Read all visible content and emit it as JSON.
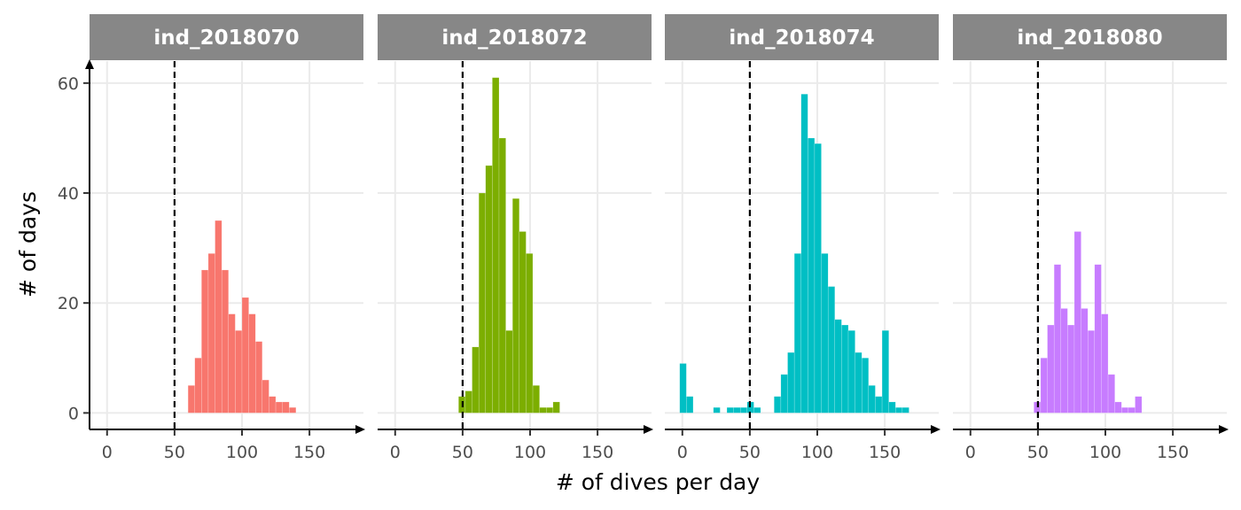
{
  "chart_data": {
    "type": "bar",
    "subtype": "faceted-histogram",
    "xlabel": "# of dives per day",
    "ylabel": "# of days",
    "xlim": [
      -13,
      190
    ],
    "ylim": [
      -3,
      64
    ],
    "x_ticks": [
      0,
      50,
      100,
      150
    ],
    "y_ticks": [
      0,
      20,
      40,
      60
    ],
    "bin_width": 5,
    "reference_line": {
      "x": 50,
      "style": "dashed",
      "color": "#000000"
    },
    "grid": true,
    "strip_color": "#878787",
    "facets": [
      {
        "name": "ind_2018070",
        "color": "#F8766D",
        "bins": [
          {
            "x": 60,
            "y": 5
          },
          {
            "x": 65,
            "y": 10
          },
          {
            "x": 70,
            "y": 26
          },
          {
            "x": 75,
            "y": 29
          },
          {
            "x": 80,
            "y": 35
          },
          {
            "x": 85,
            "y": 26
          },
          {
            "x": 90,
            "y": 18
          },
          {
            "x": 95,
            "y": 15
          },
          {
            "x": 100,
            "y": 21
          },
          {
            "x": 105,
            "y": 18
          },
          {
            "x": 110,
            "y": 13
          },
          {
            "x": 115,
            "y": 6
          },
          {
            "x": 120,
            "y": 3
          },
          {
            "x": 125,
            "y": 2
          },
          {
            "x": 130,
            "y": 2
          },
          {
            "x": 135,
            "y": 1
          }
        ]
      },
      {
        "name": "ind_2018072",
        "color": "#7CAE00",
        "bins": [
          {
            "x": 47,
            "y": 3
          },
          {
            "x": 52,
            "y": 4
          },
          {
            "x": 57,
            "y": 12
          },
          {
            "x": 62,
            "y": 40
          },
          {
            "x": 67,
            "y": 45
          },
          {
            "x": 72,
            "y": 61
          },
          {
            "x": 77,
            "y": 50
          },
          {
            "x": 82,
            "y": 15
          },
          {
            "x": 87,
            "y": 39
          },
          {
            "x": 92,
            "y": 33
          },
          {
            "x": 97,
            "y": 29
          },
          {
            "x": 102,
            "y": 5
          },
          {
            "x": 107,
            "y": 1
          },
          {
            "x": 112,
            "y": 1
          },
          {
            "x": 117,
            "y": 2
          }
        ]
      },
      {
        "name": "ind_2018074",
        "color": "#00BFC4",
        "bins": [
          {
            "x": -2,
            "y": 9
          },
          {
            "x": 3,
            "y": 3
          },
          {
            "x": 23,
            "y": 1
          },
          {
            "x": 33,
            "y": 1
          },
          {
            "x": 38,
            "y": 1
          },
          {
            "x": 43,
            "y": 1
          },
          {
            "x": 48,
            "y": 2
          },
          {
            "x": 53,
            "y": 1
          },
          {
            "x": 68,
            "y": 3
          },
          {
            "x": 73,
            "y": 7
          },
          {
            "x": 78,
            "y": 11
          },
          {
            "x": 83,
            "y": 29
          },
          {
            "x": 88,
            "y": 58
          },
          {
            "x": 93,
            "y": 50
          },
          {
            "x": 98,
            "y": 49
          },
          {
            "x": 103,
            "y": 29
          },
          {
            "x": 108,
            "y": 23
          },
          {
            "x": 113,
            "y": 17
          },
          {
            "x": 118,
            "y": 16
          },
          {
            "x": 123,
            "y": 15
          },
          {
            "x": 128,
            "y": 11
          },
          {
            "x": 133,
            "y": 10
          },
          {
            "x": 138,
            "y": 5
          },
          {
            "x": 143,
            "y": 3
          },
          {
            "x": 148,
            "y": 15
          },
          {
            "x": 153,
            "y": 2
          },
          {
            "x": 158,
            "y": 1
          },
          {
            "x": 163,
            "y": 1
          }
        ]
      },
      {
        "name": "ind_2018080",
        "color": "#C77CFF",
        "bins": [
          {
            "x": 47,
            "y": 2
          },
          {
            "x": 52,
            "y": 10
          },
          {
            "x": 57,
            "y": 16
          },
          {
            "x": 62,
            "y": 27
          },
          {
            "x": 67,
            "y": 19
          },
          {
            "x": 72,
            "y": 16
          },
          {
            "x": 77,
            "y": 33
          },
          {
            "x": 82,
            "y": 19
          },
          {
            "x": 87,
            "y": 15
          },
          {
            "x": 92,
            "y": 27
          },
          {
            "x": 97,
            "y": 18
          },
          {
            "x": 102,
            "y": 7
          },
          {
            "x": 107,
            "y": 2
          },
          {
            "x": 112,
            "y": 1
          },
          {
            "x": 117,
            "y": 1
          },
          {
            "x": 122,
            "y": 3
          }
        ]
      }
    ]
  }
}
